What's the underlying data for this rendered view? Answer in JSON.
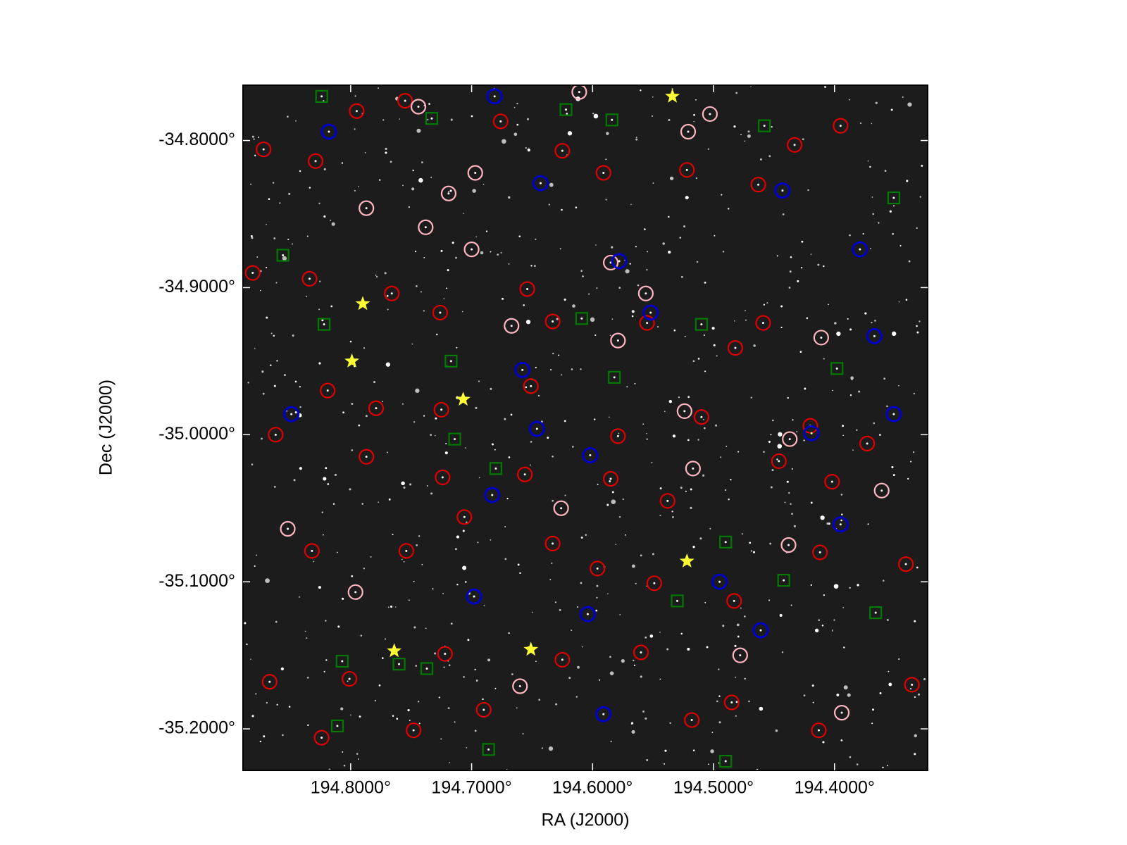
{
  "chart_data": {
    "type": "scatter",
    "x_label": "RA (J2000)",
    "y_label": "Dec (J2000)",
    "xlim": [
      194.889,
      194.323
    ],
    "ylim": [
      -35.2282,
      -34.7624
    ],
    "xticks": [
      {
        "value": 194.8,
        "label": "194.8000°"
      },
      {
        "value": 194.7,
        "label": "194.7000°"
      },
      {
        "value": 194.6,
        "label": "194.6000°"
      },
      {
        "value": 194.5,
        "label": "194.5000°"
      },
      {
        "value": 194.4,
        "label": "194.4000°"
      }
    ],
    "yticks": [
      {
        "value": -34.8,
        "label": "-34.8000°"
      },
      {
        "value": -34.9,
        "label": "-34.9000°"
      },
      {
        "value": -35.0,
        "label": "-35.0000°"
      },
      {
        "value": -35.1,
        "label": "-35.1000°"
      },
      {
        "value": -35.2,
        "label": "-35.2000°"
      }
    ],
    "series": [
      {
        "color": "#e00000",
        "marker": "circle",
        "x": [
          194.872,
          194.795,
          194.829,
          194.755,
          194.676,
          194.625,
          194.591,
          194.522,
          194.433,
          194.395,
          194.463,
          194.881,
          194.834,
          194.766,
          194.726,
          194.654,
          194.633,
          194.555,
          194.482,
          194.459,
          194.819,
          194.779,
          194.725,
          194.651,
          194.579,
          194.51,
          194.42,
          194.373,
          194.862,
          194.787,
          194.724,
          194.656,
          194.585,
          194.538,
          194.446,
          194.402,
          194.832,
          194.754,
          194.706,
          194.633,
          194.596,
          194.549,
          194.483,
          194.412,
          194.341,
          194.867,
          194.801,
          194.722,
          194.625,
          194.56,
          194.485,
          194.413,
          194.336,
          194.748,
          194.824,
          194.69,
          194.518
        ],
        "values": [
          -34.806,
          -34.78,
          -34.814,
          -34.773,
          -34.787,
          -34.807,
          -34.822,
          -34.82,
          -34.803,
          -34.79,
          -34.83,
          -34.89,
          -34.894,
          -34.904,
          -34.917,
          -34.901,
          -34.923,
          -34.924,
          -34.941,
          -34.924,
          -34.97,
          -34.982,
          -34.983,
          -34.967,
          -35.001,
          -34.988,
          -34.994,
          -35.006,
          -35.0,
          -35.015,
          -35.029,
          -35.027,
          -35.03,
          -35.045,
          -35.018,
          -35.032,
          -35.079,
          -35.079,
          -35.056,
          -35.074,
          -35.091,
          -35.101,
          -35.113,
          -35.08,
          -35.088,
          -35.168,
          -35.166,
          -35.149,
          -35.153,
          -35.148,
          -35.182,
          -35.201,
          -35.17,
          -35.201,
          -35.206,
          -35.187,
          -35.194
        ]
      },
      {
        "color": "#ffb6c1",
        "marker": "circle",
        "x": [
          194.744,
          194.611,
          194.521,
          194.503,
          194.697,
          194.719,
          194.787,
          194.738,
          194.7,
          194.585,
          194.556,
          194.667,
          194.579,
          194.411,
          194.524,
          194.437,
          194.517,
          194.361,
          194.626,
          194.852,
          194.796,
          194.438,
          194.66,
          194.394,
          194.478
        ],
        "values": [
          -34.777,
          -34.767,
          -34.794,
          -34.782,
          -34.822,
          -34.836,
          -34.846,
          -34.859,
          -34.874,
          -34.883,
          -34.904,
          -34.926,
          -34.936,
          -34.934,
          -34.984,
          -35.003,
          -35.023,
          -35.038,
          -35.05,
          -35.064,
          -35.107,
          -35.075,
          -35.171,
          -35.189,
          -35.15
        ]
      },
      {
        "color": "#0000cc",
        "marker": "circle",
        "x": [
          194.818,
          194.681,
          194.643,
          194.443,
          194.379,
          194.578,
          194.552,
          194.367,
          194.658,
          194.849,
          194.646,
          194.602,
          194.419,
          194.683,
          194.698,
          194.495,
          194.461,
          194.604,
          194.591,
          194.395,
          194.351
        ],
        "values": [
          -34.794,
          -34.77,
          -34.829,
          -34.834,
          -34.874,
          -34.882,
          -34.917,
          -34.933,
          -34.956,
          -34.986,
          -34.996,
          -35.014,
          -34.999,
          -35.041,
          -35.11,
          -35.1,
          -35.133,
          -35.122,
          -35.19,
          -35.061,
          -34.986
        ]
      },
      {
        "color": "#007a00",
        "marker": "square",
        "x": [
          194.824,
          194.733,
          194.622,
          194.584,
          194.458,
          194.856,
          194.822,
          194.717,
          194.609,
          194.51,
          194.582,
          194.714,
          194.68,
          194.398,
          194.351,
          194.49,
          194.442,
          194.53,
          194.366,
          194.807,
          194.76,
          194.737,
          194.49,
          194.686,
          194.811
        ],
        "values": [
          -34.77,
          -34.785,
          -34.779,
          -34.786,
          -34.79,
          -34.878,
          -34.925,
          -34.95,
          -34.921,
          -34.925,
          -34.961,
          -35.003,
          -35.023,
          -34.955,
          -34.839,
          -35.073,
          -35.099,
          -35.113,
          -35.121,
          -35.154,
          -35.156,
          -35.159,
          -35.222,
          -35.214,
          -35.198
        ]
      },
      {
        "color": "#ffff33",
        "marker": "star",
        "x": [
          194.534,
          194.79,
          194.799,
          194.707,
          194.522,
          194.764,
          194.651
        ],
        "values": [
          -34.77,
          -34.911,
          -34.95,
          -34.976,
          -35.086,
          -35.147,
          -35.146
        ]
      }
    ]
  }
}
